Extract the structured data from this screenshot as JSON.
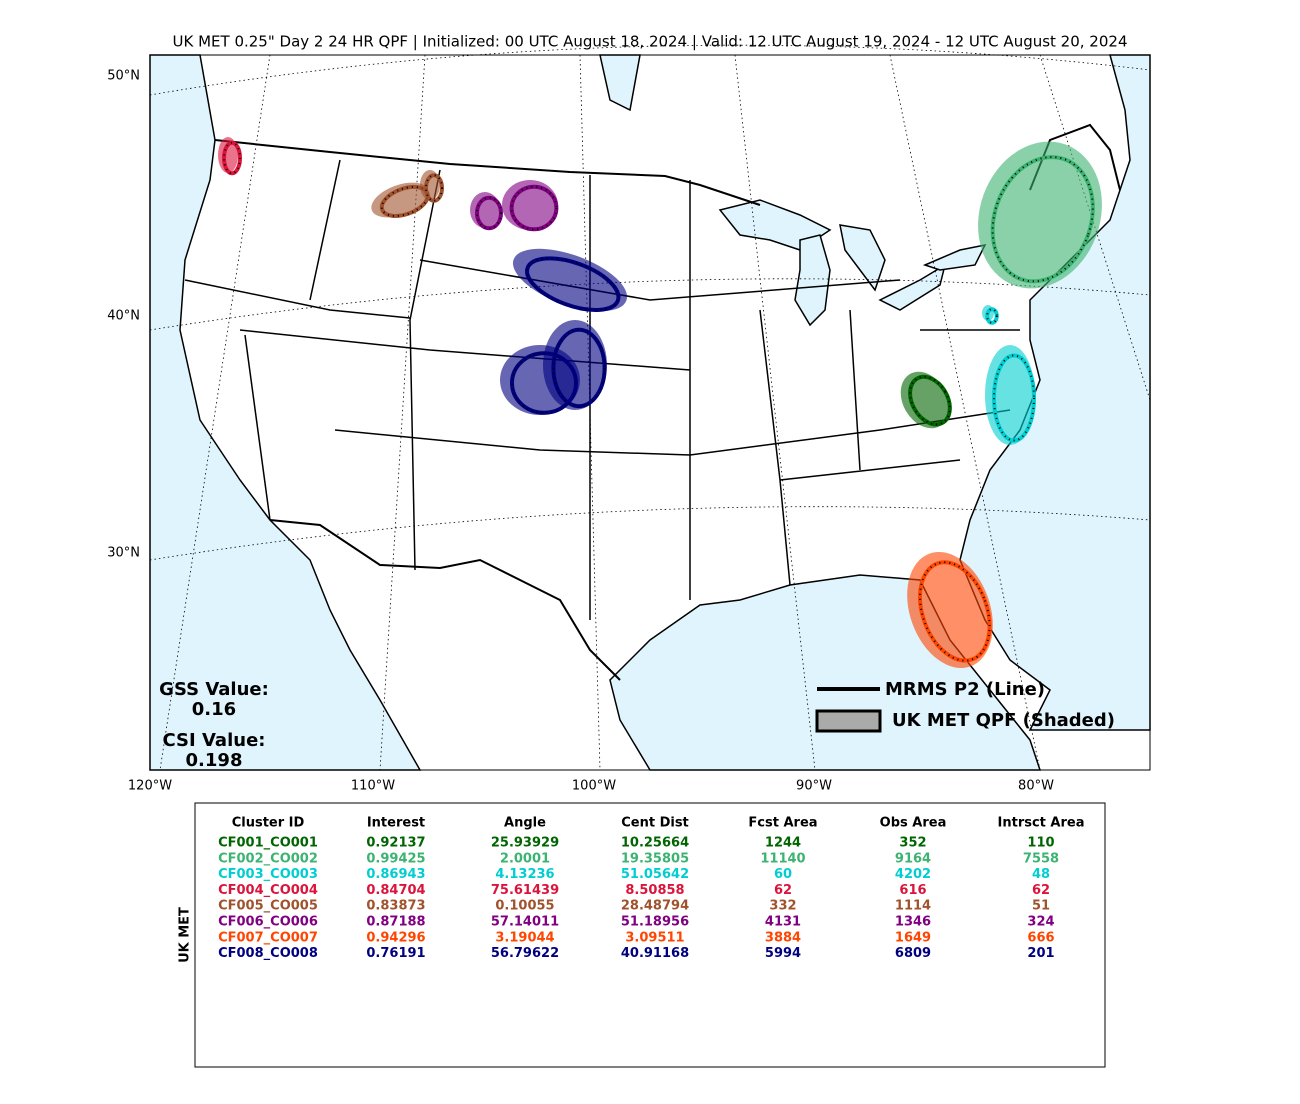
{
  "header": {
    "title": "UK MET 0.25\" Day 2 24 HR QPF | Initialized: 00 UTC August 18, 2024 | Valid: 12 UTC August 19, 2024 - 12 UTC August 20, 2024"
  },
  "map": {
    "lat_labels": [
      "50°N",
      "40°N",
      "30°N"
    ],
    "lon_labels": [
      "120°W",
      "110°W",
      "100°W",
      "90°W",
      "80°W"
    ],
    "legend": {
      "line": "MRMS P2 (Line)",
      "shaded": "UK MET QPF (Shaded)"
    },
    "scores": {
      "gss_label": "GSS Value:",
      "gss": "0.16",
      "csi_label": "CSI Value:",
      "csi": "0.198"
    }
  },
  "table": {
    "side_label": "UK MET",
    "columns": [
      "Cluster ID",
      "Interest",
      "Angle",
      "Cent Dist",
      "Fcst Area",
      "Obs Area",
      "Intrsct Area"
    ],
    "rows": [
      {
        "color": "#006400",
        "cells": [
          "CF001_CO001",
          "0.92137",
          "25.93929",
          "10.25664",
          "1244",
          "352",
          "110"
        ]
      },
      {
        "color": "#3cb371",
        "cells": [
          "CF002_CO002",
          "0.99425",
          "2.0001",
          "19.35805",
          "11140",
          "9164",
          "7558"
        ]
      },
      {
        "color": "#00ced1",
        "cells": [
          "CF003_CO003",
          "0.86943",
          "4.13236",
          "51.05642",
          "60",
          "4202",
          "48"
        ]
      },
      {
        "color": "#dc143c",
        "cells": [
          "CF004_CO004",
          "0.84704",
          "75.61439",
          "8.50858",
          "62",
          "616",
          "62"
        ]
      },
      {
        "color": "#a0522d",
        "cells": [
          "CF005_CO005",
          "0.83873",
          "0.10055",
          "28.48794",
          "332",
          "1114",
          "51"
        ]
      },
      {
        "color": "#800080",
        "cells": [
          "CF006_CO006",
          "0.87188",
          "57.14011",
          "51.18956",
          "4131",
          "1346",
          "324"
        ]
      },
      {
        "color": "#ff4500",
        "cells": [
          "CF007_CO007",
          "0.94296",
          "3.19044",
          "3.09511",
          "3884",
          "1649",
          "666"
        ]
      },
      {
        "color": "#000080",
        "cells": [
          "CF008_CO008",
          "0.76191",
          "56.79622",
          "40.91168",
          "5994",
          "6809",
          "201"
        ]
      }
    ]
  }
}
